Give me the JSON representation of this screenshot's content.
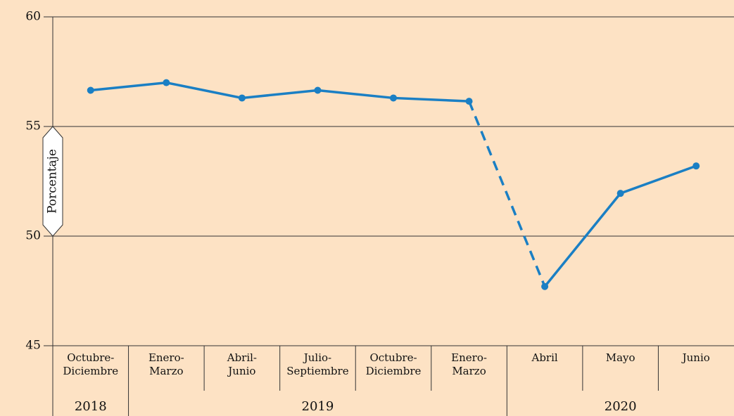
{
  "chart_data": {
    "type": "line",
    "y_axis_label": "Porcentaje",
    "categories": [
      "Octubre-\nDiciembre",
      "Enero-\nMarzo",
      "Abril-\nJunio",
      "Julio-\nSeptiembre",
      "Octubre-\nDiciembre",
      "Enero-\nMarzo",
      "Abril",
      "Mayo",
      "Junio"
    ],
    "year_groups": [
      {
        "label": "2018",
        "span": 1
      },
      {
        "label": "2019",
        "span": 5
      },
      {
        "label": "2020",
        "span": 3
      }
    ],
    "series": [
      {
        "color": "#1a7fc4",
        "values": [
          56.65,
          57.0,
          56.3,
          56.65,
          56.3,
          56.15,
          47.7,
          51.95,
          53.2
        ]
      }
    ],
    "dashed_segments": [
      5
    ],
    "ylim": [
      45,
      60
    ],
    "yticks": [
      45,
      50,
      55,
      60
    ],
    "grid": true
  }
}
